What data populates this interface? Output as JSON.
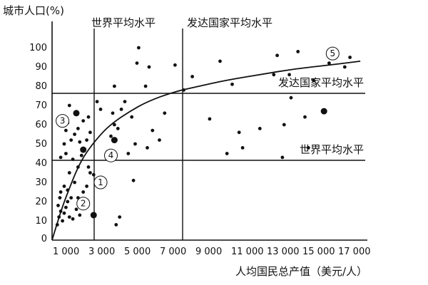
{
  "chart_data": {
    "type": "scatter",
    "title": "",
    "xlabel": "人均国民总产值（美元/人）",
    "ylabel": "城市人口(%)",
    "xlim": [
      0,
      18000
    ],
    "ylim": [
      0,
      105
    ],
    "x_ticks": [
      {
        "value": 0,
        "label": "1 000"
      },
      {
        "value": 1000,
        "label": "3 000"
      },
      {
        "value": 2000,
        "label": "5 000"
      },
      {
        "value": 3000,
        "label": "7 000"
      },
      {
        "value": 4000,
        "label": "9 000"
      },
      {
        "value": 5000,
        "label": "11 000"
      },
      {
        "value": 6000,
        "label": "13 000"
      },
      {
        "value": 7000,
        "label": "15 000"
      },
      {
        "value": 8000,
        "label": "17 000"
      }
    ],
    "y_ticks": [
      10,
      20,
      30,
      40,
      50,
      60,
      70,
      80,
      90,
      100
    ],
    "reference_lines": {
      "world_x": {
        "value": 3000,
        "label": "世界平均水平"
      },
      "developed_x": {
        "value": 8000,
        "label": "发达国家平均水平"
      },
      "developed_y": {
        "value": 75,
        "label": "发达国家平均水平"
      },
      "world_y": {
        "value": 40,
        "label": "世界平均水平"
      }
    },
    "markers": [
      {
        "id": "1",
        "label": "①",
        "x": 2800,
        "y": 30
      },
      {
        "id": "2",
        "label": "②",
        "x": 1800,
        "y": 19
      },
      {
        "id": "3",
        "label": "③",
        "x": 600,
        "y": 62
      },
      {
        "id": "4",
        "label": "④",
        "x": 3400,
        "y": 44
      },
      {
        "id": "5",
        "label": "⑤",
        "x": 16200,
        "y": 97
      }
    ],
    "points": [
      {
        "x": 300,
        "y": 8
      },
      {
        "x": 400,
        "y": 12
      },
      {
        "x": 500,
        "y": 15
      },
      {
        "x": 350,
        "y": 18
      },
      {
        "x": 450,
        "y": 22
      },
      {
        "x": 600,
        "y": 10
      },
      {
        "x": 700,
        "y": 14
      },
      {
        "x": 800,
        "y": 17
      },
      {
        "x": 900,
        "y": 20
      },
      {
        "x": 500,
        "y": 25
      },
      {
        "x": 700,
        "y": 28
      },
      {
        "x": 1000,
        "y": 12
      },
      {
        "x": 1200,
        "y": 11
      },
      {
        "x": 1400,
        "y": 16
      },
      {
        "x": 1100,
        "y": 22
      },
      {
        "x": 900,
        "y": 26
      },
      {
        "x": 1300,
        "y": 30
      },
      {
        "x": 1600,
        "y": 13
      },
      {
        "x": 1500,
        "y": 22
      },
      {
        "x": 1800,
        "y": 25
      },
      {
        "x": 2000,
        "y": 28
      },
      {
        "x": 1000,
        "y": 35
      },
      {
        "x": 1500,
        "y": 38
      },
      {
        "x": 2200,
        "y": 35
      },
      {
        "x": 2400,
        "y": 34
      },
      {
        "x": 2100,
        "y": 38
      },
      {
        "x": 500,
        "y": 43
      },
      {
        "x": 800,
        "y": 45
      },
      {
        "x": 1200,
        "y": 42
      },
      {
        "x": 1700,
        "y": 44
      },
      {
        "x": 700,
        "y": 50
      },
      {
        "x": 1100,
        "y": 52
      },
      {
        "x": 1600,
        "y": 51
      },
      {
        "x": 2000,
        "y": 52
      },
      {
        "x": 800,
        "y": 57
      },
      {
        "x": 1300,
        "y": 55
      },
      {
        "x": 1500,
        "y": 58
      },
      {
        "x": 2200,
        "y": 56
      },
      {
        "x": 900,
        "y": 61
      },
      {
        "x": 1800,
        "y": 62
      },
      {
        "x": 1400,
        "y": 66
      },
      {
        "x": 2100,
        "y": 64
      },
      {
        "x": 1000,
        "y": 70
      },
      {
        "x": 2600,
        "y": 72
      },
      {
        "x": 2800,
        "y": 68
      },
      {
        "x": 3200,
        "y": 46
      },
      {
        "x": 3400,
        "y": 54
      },
      {
        "x": 3600,
        "y": 60
      },
      {
        "x": 3800,
        "y": 58
      },
      {
        "x": 3500,
        "y": 66
      },
      {
        "x": 4000,
        "y": 68
      },
      {
        "x": 4200,
        "y": 72
      },
      {
        "x": 3600,
        "y": 80
      },
      {
        "x": 4600,
        "y": 64
      },
      {
        "x": 4800,
        "y": 50
      },
      {
        "x": 4400,
        "y": 45
      },
      {
        "x": 4700,
        "y": 31
      },
      {
        "x": 3700,
        "y": 8
      },
      {
        "x": 3900,
        "y": 12
      },
      {
        "x": 4900,
        "y": 92
      },
      {
        "x": 5000,
        "y": 100
      },
      {
        "x": 5600,
        "y": 90
      },
      {
        "x": 5400,
        "y": 80
      },
      {
        "x": 5800,
        "y": 57
      },
      {
        "x": 5500,
        "y": 48
      },
      {
        "x": 6200,
        "y": 52
      },
      {
        "x": 6500,
        "y": 66
      },
      {
        "x": 7100,
        "y": 91
      },
      {
        "x": 7600,
        "y": 78
      },
      {
        "x": 8100,
        "y": 85
      },
      {
        "x": 9100,
        "y": 63
      },
      {
        "x": 9700,
        "y": 93
      },
      {
        "x": 10100,
        "y": 45
      },
      {
        "x": 10800,
        "y": 56
      },
      {
        "x": 11000,
        "y": 48
      },
      {
        "x": 10400,
        "y": 81
      },
      {
        "x": 12000,
        "y": 58
      },
      {
        "x": 12800,
        "y": 86
      },
      {
        "x": 13000,
        "y": 96
      },
      {
        "x": 13400,
        "y": 60
      },
      {
        "x": 13700,
        "y": 86
      },
      {
        "x": 13800,
        "y": 74
      },
      {
        "x": 14200,
        "y": 98
      },
      {
        "x": 14600,
        "y": 64
      },
      {
        "x": 14800,
        "y": 48
      },
      {
        "x": 13300,
        "y": 43
      },
      {
        "x": 15100,
        "y": 83
      },
      {
        "x": 16000,
        "y": 92
      },
      {
        "x": 16900,
        "y": 90
      },
      {
        "x": 17200,
        "y": 95
      }
    ],
    "large_points": [
      {
        "x": 1400,
        "y": 66
      },
      {
        "x": 3600,
        "y": 52
      },
      {
        "x": 2400,
        "y": 13
      },
      {
        "x": 1800,
        "y": 47
      },
      {
        "x": 15700,
        "y": 67
      }
    ],
    "trend_curve": [
      {
        "x": 0,
        "y": 0
      },
      {
        "x": 500,
        "y": 15
      },
      {
        "x": 1000,
        "y": 27
      },
      {
        "x": 1500,
        "y": 38
      },
      {
        "x": 2000,
        "y": 46
      },
      {
        "x": 2800,
        "y": 55
      },
      {
        "x": 3500,
        "y": 61
      },
      {
        "x": 4500,
        "y": 67
      },
      {
        "x": 5500,
        "y": 72
      },
      {
        "x": 7000,
        "y": 77
      },
      {
        "x": 8500,
        "y": 80
      },
      {
        "x": 10000,
        "y": 83
      },
      {
        "x": 12000,
        "y": 86
      },
      {
        "x": 14000,
        "y": 89
      },
      {
        "x": 16000,
        "y": 91
      },
      {
        "x": 17800,
        "y": 93
      }
    ],
    "grid": false
  }
}
